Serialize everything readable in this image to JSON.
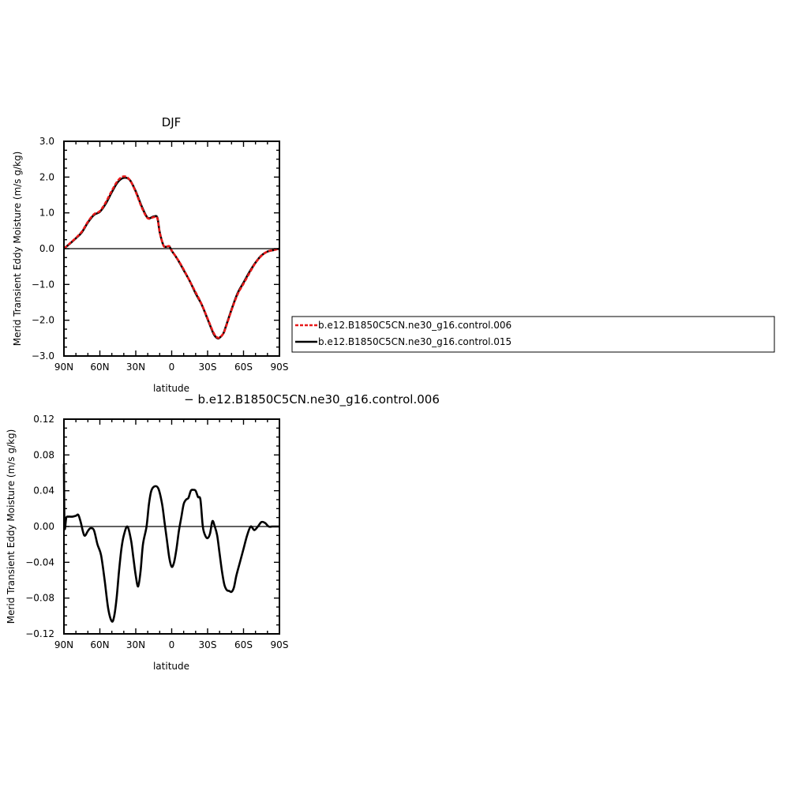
{
  "chart_data": [
    {
      "type": "line",
      "title": "DJF",
      "xlabel": "latitude",
      "ylabel": "Merid Transient Eddy Moisture (m/s g/kg)",
      "xlim": [
        90,
        -90
      ],
      "ylim": [
        -3.0,
        3.0
      ],
      "x_ticks": [
        90,
        60,
        30,
        0,
        -30,
        -60,
        -90
      ],
      "x_tick_labels": [
        "90N",
        "60N",
        "30N",
        "0",
        "30S",
        "60S",
        "90S"
      ],
      "y_ticks": [
        3.0,
        2.0,
        1.0,
        0.0,
        -1.0,
        -2.0,
        -3.0
      ],
      "y_tick_labels": [
        "3.0",
        "2.0",
        "1.0",
        "0.0",
        "−1.0",
        "−2.0",
        "−3.0"
      ],
      "grid": false,
      "legend": {
        "placement": "right",
        "entries": [
          "b.e12.B1850C5CN.ne30_g16.control.006",
          "b.e12.B1850C5CN.ne30_g16.control.015"
        ]
      },
      "series": [
        {
          "name": "b.e12.B1850C5CN.ne30_g16.control.006",
          "color": "#e8191a",
          "style": "dashed",
          "x": [
            90,
            85,
            80,
            75,
            70,
            65,
            60,
            55,
            50,
            45,
            40,
            35,
            30,
            25,
            20,
            15,
            12,
            10,
            7,
            5,
            2,
            0,
            -3,
            -6,
            -10,
            -15,
            -20,
            -25,
            -30,
            -35,
            -38,
            -40,
            -43,
            -45,
            -50,
            -55,
            -60,
            -65,
            -70,
            -75,
            -80,
            -85,
            -90
          ],
          "values": [
            0.0,
            0.15,
            0.3,
            0.48,
            0.75,
            0.96,
            1.05,
            1.3,
            1.62,
            1.9,
            2.02,
            1.92,
            1.58,
            1.15,
            0.85,
            0.88,
            0.85,
            0.45,
            0.1,
            0.05,
            0.07,
            -0.05,
            -0.2,
            -0.35,
            -0.58,
            -0.9,
            -1.22,
            -1.55,
            -1.95,
            -2.35,
            -2.48,
            -2.48,
            -2.38,
            -2.22,
            -1.72,
            -1.28,
            -0.98,
            -0.68,
            -0.4,
            -0.2,
            -0.08,
            -0.04,
            0.0
          ]
        },
        {
          "name": "b.e12.B1850C5CN.ne30_g16.control.015",
          "color": "#000000",
          "style": "solid",
          "x": [
            90,
            85,
            80,
            75,
            70,
            65,
            60,
            55,
            50,
            45,
            40,
            35,
            30,
            25,
            20,
            15,
            12,
            10,
            7,
            5,
            2,
            0,
            -3,
            -6,
            -10,
            -15,
            -20,
            -25,
            -30,
            -35,
            -38,
            -40,
            -43,
            -45,
            -50,
            -55,
            -60,
            -65,
            -70,
            -75,
            -80,
            -85,
            -90
          ],
          "values": [
            0.0,
            0.14,
            0.29,
            0.46,
            0.73,
            0.94,
            1.03,
            1.26,
            1.58,
            1.86,
            1.98,
            1.92,
            1.6,
            1.18,
            0.86,
            0.9,
            0.87,
            0.46,
            0.1,
            0.05,
            0.06,
            -0.06,
            -0.2,
            -0.36,
            -0.6,
            -0.9,
            -1.25,
            -1.56,
            -1.97,
            -2.38,
            -2.5,
            -2.49,
            -2.38,
            -2.2,
            -1.7,
            -1.25,
            -0.95,
            -0.65,
            -0.39,
            -0.19,
            -0.08,
            -0.04,
            0.0
          ]
        }
      ]
    },
    {
      "type": "line",
      "title": "− b.e12.B1850C5CN.ne30_g16.control.006",
      "xlabel": "latitude",
      "ylabel": "Merid Transient Eddy Moisture (m/s g/kg)",
      "xlim": [
        90,
        -90
      ],
      "ylim": [
        -0.12,
        0.12
      ],
      "x_ticks": [
        90,
        60,
        30,
        0,
        -30,
        -60,
        -90
      ],
      "x_tick_labels": [
        "90N",
        "60N",
        "30N",
        "0",
        "30S",
        "60S",
        "90S"
      ],
      "y_ticks": [
        0.12,
        0.08,
        0.04,
        0.0,
        -0.04,
        -0.08,
        -0.12
      ],
      "y_tick_labels": [
        "0.12",
        "0.08",
        "0.04",
        "0.00",
        "−0.04",
        "−0.08",
        "−0.12"
      ],
      "grid": false,
      "series": [
        {
          "color": "#000000",
          "style": "solid",
          "x": [
            90,
            89.5,
            88,
            86,
            83,
            80,
            78,
            76,
            73,
            70,
            68,
            65,
            62,
            59,
            56,
            53,
            50,
            48,
            46,
            44,
            42,
            40,
            37,
            34,
            32,
            30,
            28,
            26,
            24,
            21,
            19,
            17,
            14,
            11,
            8,
            6,
            4,
            2,
            0,
            -2,
            -4,
            -6,
            -8,
            -10,
            -12,
            -14,
            -16,
            -18,
            -20,
            -22,
            -24,
            -26,
            -28,
            -30,
            -32,
            -34,
            -36,
            -38,
            -40,
            -42,
            -44,
            -46,
            -48,
            -50,
            -52,
            -54,
            -57,
            -60,
            -63,
            -66,
            -69,
            -72,
            -75,
            -78,
            -81,
            -84,
            -87,
            -90
          ],
          "values": [
            0.07,
            0.0,
            0.01,
            0.011,
            0.011,
            0.012,
            0.013,
            0.005,
            -0.01,
            -0.005,
            -0.002,
            -0.004,
            -0.02,
            -0.032,
            -0.06,
            -0.092,
            -0.106,
            -0.1,
            -0.08,
            -0.05,
            -0.025,
            -0.01,
            0.0,
            -0.015,
            -0.035,
            -0.055,
            -0.067,
            -0.05,
            -0.02,
            0.0,
            0.025,
            0.04,
            0.045,
            0.042,
            0.025,
            0.005,
            -0.015,
            -0.035,
            -0.045,
            -0.04,
            -0.025,
            -0.005,
            0.01,
            0.025,
            0.03,
            0.032,
            0.04,
            0.041,
            0.04,
            0.033,
            0.03,
            0.0,
            -0.01,
            -0.013,
            -0.008,
            0.006,
            0.0,
            -0.01,
            -0.03,
            -0.05,
            -0.065,
            -0.071,
            -0.072,
            -0.073,
            -0.068,
            -0.055,
            -0.04,
            -0.025,
            -0.01,
            0.0,
            -0.004,
            0.0,
            0.005,
            0.004,
            0.0,
            0.0,
            0.0,
            0.0
          ]
        }
      ]
    }
  ]
}
